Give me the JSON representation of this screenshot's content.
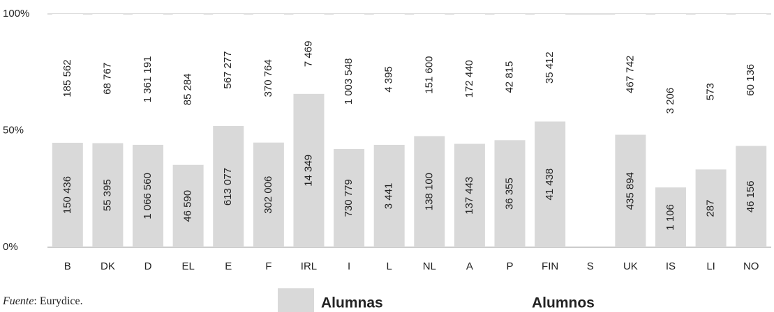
{
  "chart_data": {
    "type": "bar",
    "stacked": "percent",
    "categories": [
      "B",
      "DK",
      "D",
      "EL",
      "E",
      "F",
      "IRL",
      "I",
      "L",
      "NL",
      "A",
      "P",
      "FIN",
      "S",
      "UK",
      "IS",
      "LI",
      "NO"
    ],
    "series": [
      {
        "name": "Alumnas",
        "color": "#d9d9d9",
        "values": [
          150436,
          55395,
          1066560,
          46590,
          613077,
          302006,
          14349,
          730779,
          3441,
          138100,
          137443,
          36355,
          41438,
          null,
          435894,
          1106,
          287,
          46156
        ],
        "value_labels": [
          "150 436",
          "55 395",
          "1 066 560",
          "46 590",
          "613 077",
          "302 006",
          "14 349",
          "730 779",
          "3 441",
          "138 100",
          "137 443",
          "36 355",
          "41 438",
          null,
          "435 894",
          "1 106",
          "287",
          "46 156"
        ]
      },
      {
        "name": "Alumnos",
        "color": "#ffffff",
        "values": [
          185562,
          68767,
          1361191,
          85284,
          567277,
          370764,
          7469,
          1003548,
          4395,
          151600,
          172440,
          42815,
          35412,
          null,
          467742,
          3206,
          573,
          60136
        ],
        "value_labels": [
          "185 562",
          "68 767",
          "1 361 191",
          "85 284",
          "567 277",
          "370 764",
          "7 469",
          "1 003 548",
          "4 395",
          "151 600",
          "172 440",
          "42 815",
          "35 412",
          null,
          "467 742",
          "3 206",
          "573",
          "60 136"
        ]
      }
    ],
    "ylim": [
      0,
      100
    ],
    "yticks": [
      {
        "value": 0,
        "label": "0%"
      },
      {
        "value": 50,
        "label": "50%"
      },
      {
        "value": 100,
        "label": "100%"
      }
    ],
    "source": {
      "label": "Fuente",
      "text": ": Eurydice."
    }
  }
}
